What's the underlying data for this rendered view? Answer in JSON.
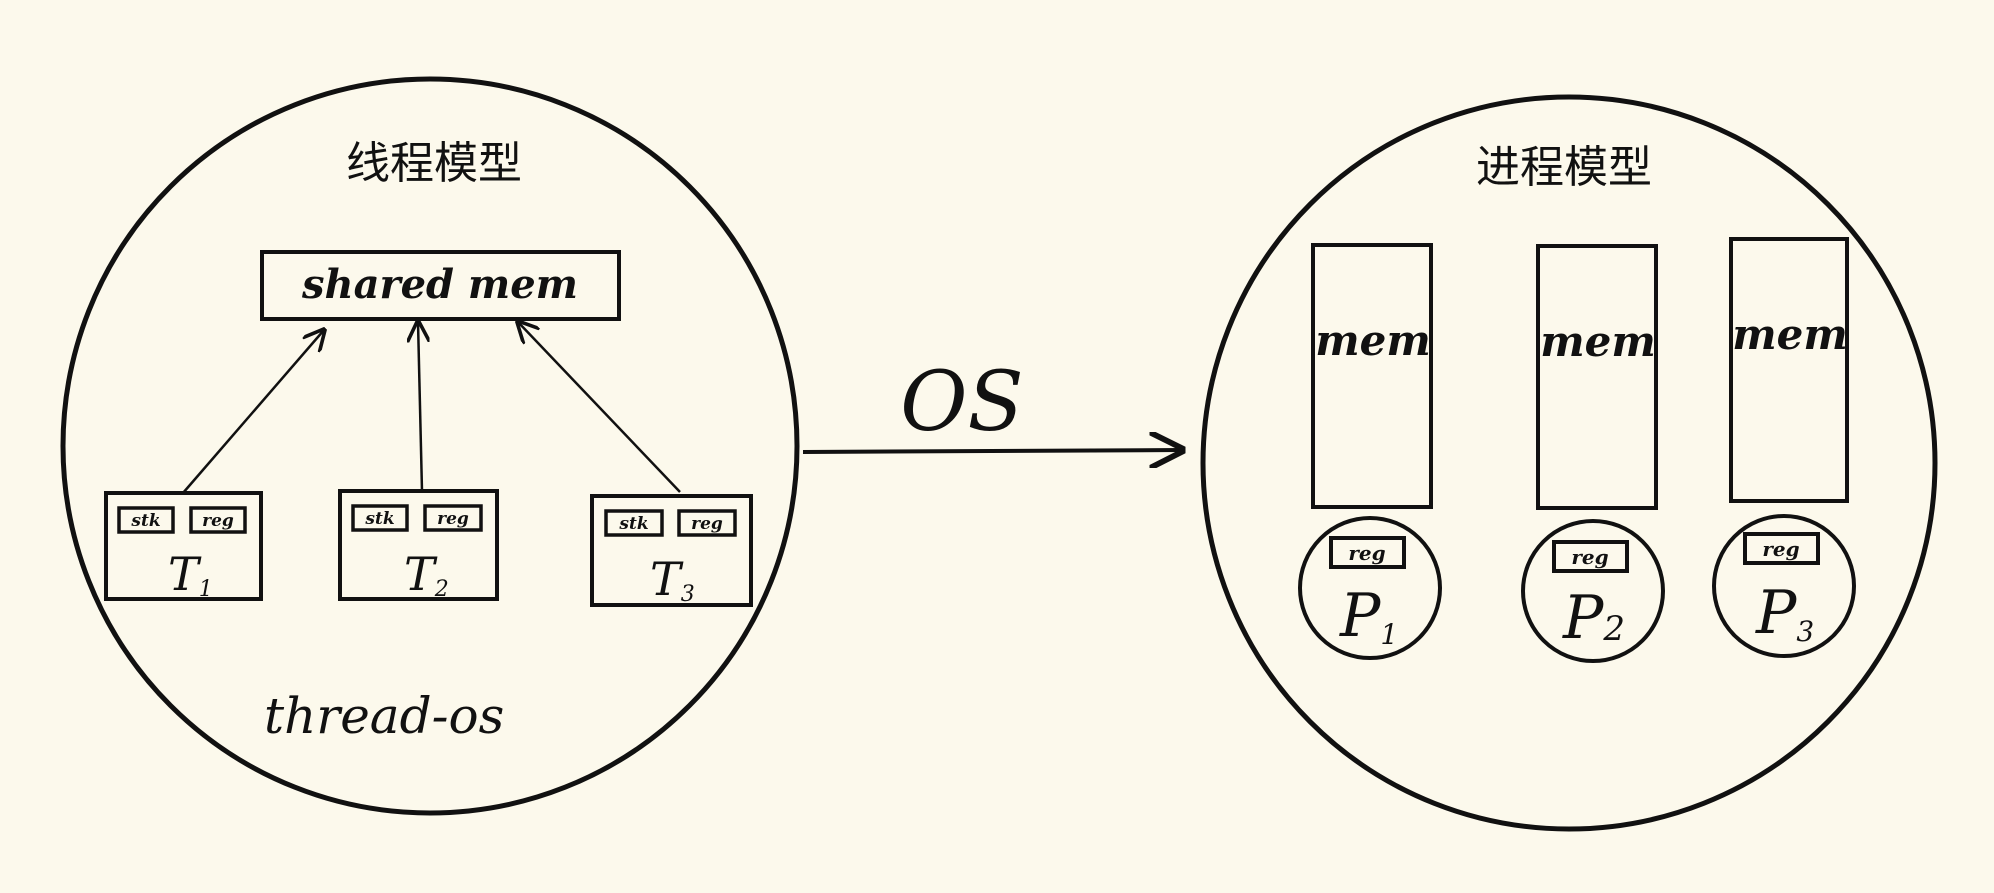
{
  "colors": {
    "background": "#fcf9ec",
    "ink": "#111111"
  },
  "thread_model": {
    "title": "线程模型",
    "shared_mem": "shared mem",
    "footer": "thread-os",
    "threads": [
      {
        "name": "T",
        "sub": "1",
        "stk": "stk",
        "reg": "reg"
      },
      {
        "name": "T",
        "sub": "2",
        "stk": "stk",
        "reg": "reg"
      },
      {
        "name": "T",
        "sub": "3",
        "stk": "stk",
        "reg": "reg"
      }
    ]
  },
  "transition": {
    "label": "OS"
  },
  "process_model": {
    "title": "进程模型",
    "processes": [
      {
        "mem": "mem",
        "reg": "reg",
        "name": "P",
        "sub": "1"
      },
      {
        "mem": "mem",
        "reg": "reg",
        "name": "P",
        "sub": "2"
      },
      {
        "mem": "mem",
        "reg": "reg",
        "name": "P",
        "sub": "3"
      }
    ]
  }
}
